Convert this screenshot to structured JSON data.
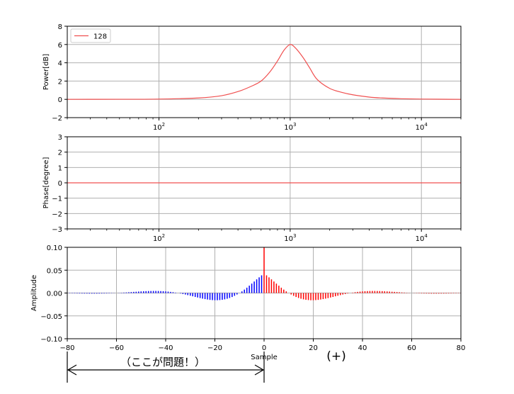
{
  "chart_data": [
    {
      "type": "line",
      "xscale": "log",
      "xlim": [
        20,
        20000
      ],
      "ylim": [
        -2,
        8
      ],
      "ylabel": "Power[dB]",
      "xticks": [
        100,
        1000,
        10000
      ],
      "xtick_labels": [
        {
          "base": "10",
          "exp": "2"
        },
        {
          "base": "10",
          "exp": "3"
        },
        {
          "base": "10",
          "exp": "4"
        }
      ],
      "yticks": [
        -2,
        0,
        2,
        4,
        6,
        8
      ],
      "ytick_labels": [
        "−2",
        "0",
        "2",
        "4",
        "6",
        "8"
      ],
      "grid": true,
      "legend": {
        "placement": "upper-left",
        "entries": [
          "128"
        ]
      },
      "series": [
        {
          "name": "128",
          "color": "#f05050",
          "x": [
            20,
            50,
            100,
            200,
            300,
            400,
            500,
            600,
            700,
            800,
            900,
            1000,
            1100,
            1250,
            1400,
            1600,
            2000,
            2500,
            3000,
            4000,
            5000,
            7000,
            10000,
            20000
          ],
          "y": [
            0,
            0.01,
            0.03,
            0.15,
            0.4,
            0.85,
            1.4,
            2.0,
            3.0,
            4.2,
            5.4,
            6.0,
            5.6,
            4.6,
            3.5,
            2.2,
            1.2,
            0.75,
            0.5,
            0.25,
            0.15,
            0.07,
            0.03,
            0
          ]
        }
      ]
    },
    {
      "type": "line",
      "xscale": "log",
      "xlim": [
        20,
        20000
      ],
      "ylim": [
        -3,
        3
      ],
      "ylabel": "Phase[degree]",
      "xticks": [
        100,
        1000,
        10000
      ],
      "xtick_labels": [
        {
          "base": "10",
          "exp": "2"
        },
        {
          "base": "10",
          "exp": "3"
        },
        {
          "base": "10",
          "exp": "4"
        }
      ],
      "yticks": [
        -3,
        -2,
        -1,
        0,
        1,
        2,
        3
      ],
      "ytick_labels": [
        "−3",
        "−2",
        "−1",
        "0",
        "1",
        "2",
        "3"
      ],
      "grid": true,
      "series": [
        {
          "color": "#f05050",
          "x": [
            20,
            20000
          ],
          "y": [
            0,
            0
          ]
        }
      ]
    },
    {
      "type": "stem",
      "xlim": [
        -80,
        80
      ],
      "ylim": [
        -0.1,
        0.1
      ],
      "xlabel": "Sample",
      "ylabel": "Amplitude",
      "xticks": [
        -80,
        -60,
        -40,
        -20,
        0,
        20,
        40,
        60,
        80
      ],
      "xtick_labels": [
        "−80",
        "−60",
        "−40",
        "−20",
        "0",
        "20",
        "40",
        "60",
        "80"
      ],
      "yticks": [
        -0.1,
        -0.05,
        0.0,
        0.05,
        0.1
      ],
      "ytick_labels": [
        "−0.10",
        "−0.05",
        "0.00",
        "0.05",
        "0.10"
      ],
      "grid": true,
      "colors": {
        "negative_samples": "#0000ff",
        "non_negative_samples": "#ff0000"
      },
      "x_start": -80,
      "values": [
        -0.0005,
        -0.0006,
        -0.0007,
        -0.0008,
        -0.0009,
        -0.001,
        -0.0011,
        -0.0012,
        -0.0012,
        -0.0013,
        -0.0013,
        -0.0013,
        -0.0013,
        -0.0012,
        -0.0011,
        -0.001,
        -0.0009,
        -0.0007,
        -0.0005,
        -0.0003,
        0,
        0.0003,
        0.0006,
        0.001,
        0.0013,
        0.0017,
        0.0021,
        0.0025,
        0.0028,
        0.0032,
        0.0035,
        0.0038,
        0.0041,
        0.0043,
        0.0044,
        0.0045,
        0.0045,
        0.0044,
        0.0042,
        0.004,
        0.0036,
        0.0031,
        0.0025,
        0.0018,
        0.0009,
        0,
        -0.001,
        -0.0022,
        -0.0033,
        -0.0046,
        -0.0059,
        -0.0072,
        -0.0086,
        -0.0098,
        -0.0111,
        -0.0123,
        -0.0133,
        -0.0142,
        -0.015,
        -0.0155,
        -0.0158,
        -0.0158,
        -0.0154,
        -0.0148,
        -0.0138,
        -0.0125,
        -0.0108,
        -0.0087,
        -0.0061,
        -0.0032,
        0,
        0.0036,
        0.0075,
        0.0117,
        0.0161,
        0.0206,
        0.0252,
        0.0299,
        0.0343,
        0.0387,
        0.12,
        0.0387,
        0.0343,
        0.0299,
        0.0252,
        0.0206,
        0.0161,
        0.0117,
        0.0075,
        0.0036,
        0,
        -0.0032,
        -0.0061,
        -0.0087,
        -0.0108,
        -0.0125,
        -0.0138,
        -0.0148,
        -0.0154,
        -0.0158,
        -0.0158,
        -0.0155,
        -0.015,
        -0.0142,
        -0.0133,
        -0.0123,
        -0.0111,
        -0.0098,
        -0.0086,
        -0.0072,
        -0.0059,
        -0.0046,
        -0.0033,
        -0.0022,
        -0.001,
        0,
        0.0009,
        0.0018,
        0.0025,
        0.0031,
        0.0036,
        0.004,
        0.0042,
        0.0044,
        0.0045,
        0.0045,
        0.0044,
        0.0043,
        0.0041,
        0.0038,
        0.0035,
        0.0032,
        0.0028,
        0.0025,
        0.0021,
        0.0017,
        0.0013,
        0.001,
        0.0006,
        0.0003,
        0,
        -0.0003,
        -0.0005,
        -0.0007,
        -0.0009,
        -0.001,
        -0.0011,
        -0.0012,
        -0.0013,
        -0.0013,
        -0.0013,
        -0.0013,
        -0.0012,
        -0.0012,
        -0.0011,
        -0.001,
        -0.0009,
        -0.0008,
        -0.0007,
        -0.0006,
        -0.0005
      ]
    }
  ],
  "annotations": {
    "problem_label": "（ここが問題！）",
    "problem_range": [
      -80,
      0
    ],
    "plus_label": "(+)"
  }
}
